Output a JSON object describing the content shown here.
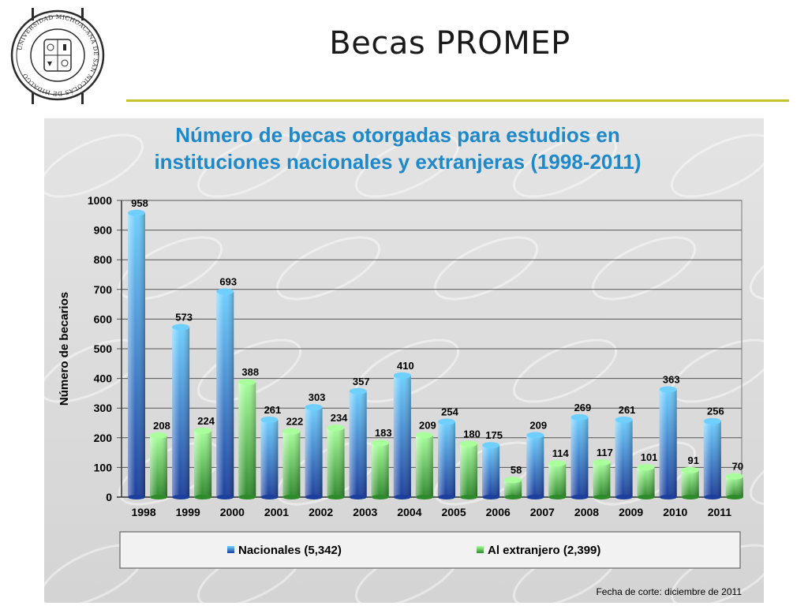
{
  "slide": {
    "title": "Becas PROMEP"
  },
  "seal": {
    "ring_text": "UNIVERSIDAD MICHOACANA DE SAN NICOLÁS DE HIDALGO",
    "colors": {
      "ink": "#2b2b2b",
      "background": "#ffffff"
    }
  },
  "colors": {
    "title_rule": "#c8c22a",
    "panel": "#dcdcdc",
    "chart_title": "#1e88c8",
    "nacionales_light": "#6fd0ff",
    "nacionales_dark": "#1c3f9c",
    "extranjero_light": "#a8ff9c",
    "extranjero_dark": "#2f8a2c"
  },
  "footnote": "Fecha de corte: diciembre de 2011",
  "chart_data": {
    "type": "bar",
    "title": "Número de becas otorgadas para estudios en instituciones nacionales y extranjeras  (1998-2011)",
    "title_lines": [
      "Número de becas otorgadas para estudios en",
      "instituciones nacionales y extranjeras  (1998-2011)"
    ],
    "ylabel": "Número de becarios",
    "xlabel": "",
    "ylim": [
      0,
      1000
    ],
    "yticks": [
      0,
      100,
      200,
      300,
      400,
      500,
      600,
      700,
      800,
      900,
      1000
    ],
    "grid": true,
    "legend_position": "bottom",
    "categories": [
      "1998",
      "1999",
      "2000",
      "2001",
      "2002",
      "2003",
      "2004",
      "2005",
      "2006",
      "2007",
      "2008",
      "2009",
      "2010",
      "2011"
    ],
    "series": [
      {
        "name": "Nacionales (5,342)",
        "values": [
          958,
          573,
          693,
          261,
          303,
          357,
          410,
          254,
          175,
          209,
          269,
          261,
          363,
          256
        ]
      },
      {
        "name": "Al extranjero (2,399)",
        "values": [
          208,
          224,
          388,
          222,
          234,
          183,
          209,
          180,
          58,
          114,
          117,
          101,
          91,
          70
        ]
      }
    ]
  }
}
